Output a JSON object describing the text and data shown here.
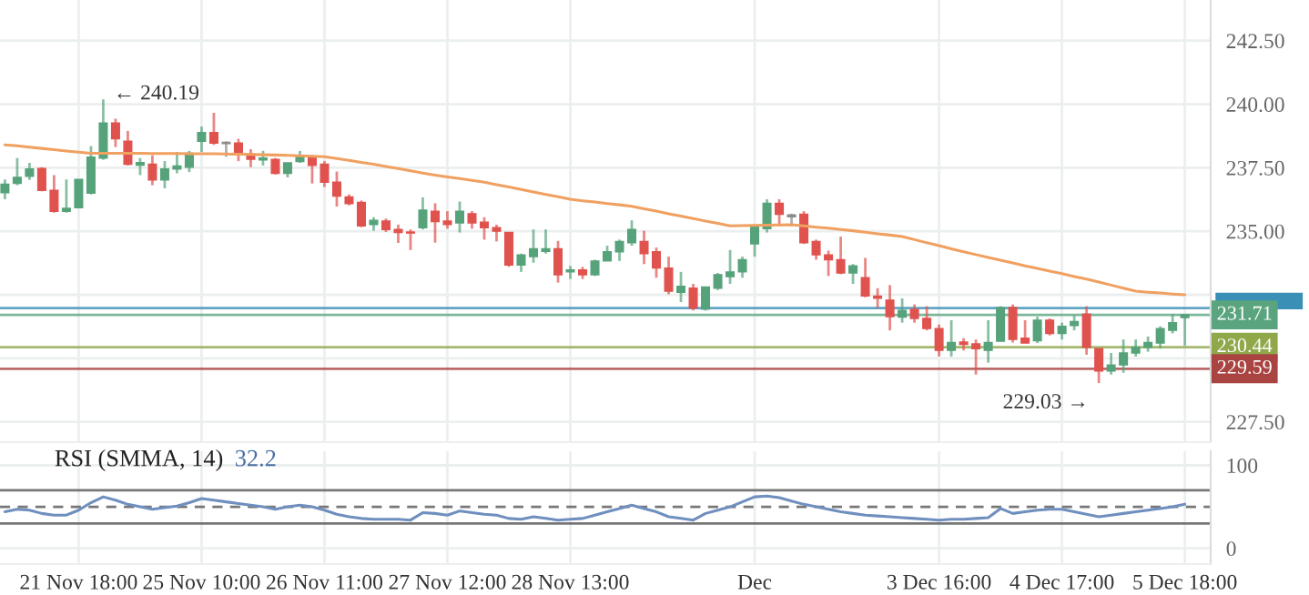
{
  "chart_data": [
    {
      "type": "candlestick",
      "tick_labels": "y",
      "grid": true,
      "ohlc": [
        [
          236.52,
          237.04,
          236.26,
          236.85
        ],
        [
          236.88,
          237.88,
          236.81,
          237.12
        ],
        [
          237.16,
          237.69,
          237.02,
          237.45
        ],
        [
          237.47,
          237.52,
          236.57,
          236.61
        ],
        [
          236.61,
          237.21,
          235.73,
          235.78
        ],
        [
          235.78,
          237.04,
          235.73,
          235.9
        ],
        [
          235.93,
          237.04,
          235.93,
          237.04
        ],
        [
          236.5,
          238.35,
          236.45,
          237.92
        ],
        [
          237.88,
          240.19,
          237.81,
          239.26
        ],
        [
          239.26,
          239.43,
          238.31,
          238.64
        ],
        [
          238.54,
          238.95,
          237.59,
          237.64
        ],
        [
          237.6,
          237.88,
          237.21,
          237.7
        ],
        [
          237.64,
          237.99,
          236.81,
          237.02
        ],
        [
          237.02,
          237.76,
          236.69,
          237.45
        ],
        [
          237.45,
          238.12,
          237.28,
          237.57
        ],
        [
          237.52,
          238.16,
          237.33,
          238.07
        ],
        [
          238.54,
          239.12,
          238.12,
          238.88
        ],
        [
          238.88,
          239.66,
          238.4,
          238.47
        ],
        [
          238.5,
          238.54,
          237.93,
          238.45
        ],
        [
          238.47,
          238.64,
          237.76,
          238.07
        ],
        [
          238.04,
          238.23,
          237.52,
          237.83
        ],
        [
          237.81,
          238.16,
          237.59,
          237.88
        ],
        [
          237.83,
          237.88,
          237.23,
          237.28
        ],
        [
          237.28,
          237.69,
          237.12,
          237.69
        ],
        [
          237.74,
          238.16,
          237.69,
          237.93
        ],
        [
          237.93,
          238.0,
          236.88,
          237.59
        ],
        [
          237.64,
          237.76,
          236.74,
          236.93
        ],
        [
          236.93,
          237.35,
          235.97,
          236.38
        ],
        [
          236.35,
          236.45,
          236.02,
          236.09
        ],
        [
          236.14,
          236.21,
          235.16,
          235.21
        ],
        [
          235.26,
          235.55,
          235.02,
          235.43
        ],
        [
          235.4,
          235.5,
          234.97,
          235.07
        ],
        [
          235.07,
          235.26,
          234.54,
          234.95
        ],
        [
          234.97,
          235.07,
          234.26,
          234.93
        ],
        [
          235.14,
          236.33,
          235.07,
          235.83
        ],
        [
          235.79,
          236.1,
          234.55,
          235.38
        ],
        [
          235.4,
          235.79,
          235.1,
          235.26
        ],
        [
          235.33,
          236.17,
          234.95,
          235.79
        ],
        [
          235.69,
          235.79,
          235.1,
          235.33
        ],
        [
          235.36,
          235.55,
          234.67,
          235.14
        ],
        [
          235.14,
          235.26,
          234.6,
          235.0
        ],
        [
          234.95,
          234.95,
          233.6,
          233.67
        ],
        [
          233.67,
          234.12,
          233.4,
          234.07
        ],
        [
          234.0,
          235.07,
          233.76,
          234.31
        ],
        [
          234.21,
          235.07,
          234.12,
          234.31
        ],
        [
          234.31,
          234.62,
          232.98,
          233.29
        ],
        [
          233.4,
          233.64,
          233.12,
          233.48
        ],
        [
          233.48,
          233.6,
          233.12,
          233.29
        ],
        [
          233.29,
          233.88,
          233.24,
          233.83
        ],
        [
          233.83,
          234.43,
          233.83,
          234.19
        ],
        [
          234.19,
          234.67,
          233.83,
          234.6
        ],
        [
          234.55,
          235.43,
          234.43,
          235.07
        ],
        [
          234.6,
          235.02,
          233.71,
          234.12
        ],
        [
          234.19,
          234.36,
          233.17,
          233.55
        ],
        [
          233.55,
          234.0,
          232.52,
          232.64
        ],
        [
          232.6,
          233.4,
          232.21,
          232.83
        ],
        [
          232.76,
          232.93,
          231.88,
          231.98
        ],
        [
          231.93,
          232.81,
          231.88,
          232.81
        ],
        [
          232.76,
          233.36,
          232.69,
          233.29
        ],
        [
          233.21,
          234.26,
          232.93,
          233.4
        ],
        [
          233.4,
          234.0,
          233.17,
          233.88
        ],
        [
          234.5,
          235.19,
          234.0,
          235.19
        ],
        [
          235.1,
          236.26,
          234.95,
          236.1
        ],
        [
          236.1,
          236.26,
          235.19,
          235.67
        ],
        [
          235.64,
          235.69,
          235.19,
          235.57
        ],
        [
          235.67,
          235.79,
          234.5,
          234.55
        ],
        [
          234.6,
          234.67,
          233.88,
          234.07
        ],
        [
          234.07,
          234.24,
          233.24,
          233.88
        ],
        [
          233.88,
          234.79,
          233.31,
          233.36
        ],
        [
          233.36,
          233.71,
          232.93,
          233.64
        ],
        [
          233.17,
          233.95,
          232.4,
          232.45
        ],
        [
          232.45,
          232.76,
          231.98,
          232.36
        ],
        [
          232.29,
          232.88,
          231.1,
          231.64
        ],
        [
          231.62,
          232.36,
          231.4,
          231.88
        ],
        [
          231.93,
          232.12,
          231.4,
          231.57
        ],
        [
          231.57,
          232.05,
          231.1,
          231.17
        ],
        [
          231.17,
          231.33,
          230.07,
          230.31
        ],
        [
          230.31,
          231.5,
          230.07,
          230.62
        ],
        [
          230.64,
          230.79,
          230.31,
          230.55
        ],
        [
          230.57,
          230.74,
          229.36,
          230.38
        ],
        [
          230.31,
          231.5,
          229.83,
          230.62
        ],
        [
          230.67,
          232.05,
          230.67,
          232.0
        ],
        [
          232.0,
          232.12,
          230.62,
          230.74
        ],
        [
          230.79,
          231.5,
          230.6,
          230.6
        ],
        [
          230.69,
          231.64,
          230.6,
          231.5
        ],
        [
          231.5,
          231.57,
          230.9,
          230.98
        ],
        [
          230.98,
          231.4,
          230.74,
          231.26
        ],
        [
          231.29,
          231.69,
          231.1,
          231.45
        ],
        [
          231.74,
          232.05,
          230.14,
          230.43
        ],
        [
          230.38,
          230.38,
          229.03,
          229.5
        ],
        [
          229.5,
          230.21,
          229.36,
          229.74
        ],
        [
          229.74,
          230.74,
          229.43,
          230.21
        ],
        [
          230.21,
          230.74,
          230.07,
          230.43
        ],
        [
          230.43,
          230.86,
          230.26,
          230.62
        ],
        [
          230.6,
          231.26,
          230.38,
          231.17
        ],
        [
          231.1,
          231.74,
          230.98,
          231.4
        ],
        [
          231.6,
          231.71,
          230.5,
          231.71
        ]
      ],
      "colors": [
        "#56a27a",
        "#56a27a",
        "#56a27a",
        "#e0524e",
        "#e0524e",
        "#56a27a",
        "#56a27a",
        "#56a27a",
        "#56a27a",
        "#e0524e",
        "#e0524e",
        "#56a27a",
        "#e0524e",
        "#56a27a",
        "#56a27a",
        "#56a27a",
        "#56a27a",
        "#e0524e",
        "#8c8c8c",
        "#e0524e",
        "#e0524e",
        "#56a27a",
        "#e0524e",
        "#56a27a",
        "#56a27a",
        "#e0524e",
        "#e0524e",
        "#e0524e",
        "#e0524e",
        "#e0524e",
        "#56a27a",
        "#e0524e",
        "#e0524e",
        "#e0524e",
        "#56a27a",
        "#e0524e",
        "#e0524e",
        "#56a27a",
        "#e0524e",
        "#e0524e",
        "#e0524e",
        "#e0524e",
        "#56a27a",
        "#56a27a",
        "#56a27a",
        "#e0524e",
        "#56a27a",
        "#e0524e",
        "#56a27a",
        "#56a27a",
        "#56a27a",
        "#56a27a",
        "#e0524e",
        "#e0524e",
        "#e0524e",
        "#56a27a",
        "#e0524e",
        "#56a27a",
        "#56a27a",
        "#56a27a",
        "#56a27a",
        "#56a27a",
        "#56a27a",
        "#e0524e",
        "#8c8c8c",
        "#e0524e",
        "#e0524e",
        "#e0524e",
        "#e0524e",
        "#56a27a",
        "#e0524e",
        "#e0524e",
        "#e0524e",
        "#56a27a",
        "#e0524e",
        "#e0524e",
        "#e0524e",
        "#56a27a",
        "#e0524e",
        "#e0524e",
        "#56a27a",
        "#56a27a",
        "#e0524e",
        "#e0524e",
        "#56a27a",
        "#e0524e",
        "#56a27a",
        "#56a27a",
        "#e0524e",
        "#e0524e",
        "#56a27a",
        "#56a27a",
        "#56a27a",
        "#56a27a",
        "#56a27a",
        "#56a27a",
        "#56a27a"
      ],
      "series": [
        {
          "type": "line",
          "color": "#f0a060",
          "values": [
            238.4,
            238.36,
            238.31,
            238.26,
            238.21,
            238.16,
            238.11,
            238.07,
            238.07,
            238.07,
            238.07,
            238.07,
            238.06,
            238.06,
            238.06,
            238.05,
            238.05,
            238.05,
            238.04,
            238.03,
            238.02,
            238.01,
            238.0,
            237.99,
            237.97,
            237.95,
            237.93,
            237.86,
            237.79,
            237.71,
            237.64,
            237.55,
            237.47,
            237.38,
            237.29,
            237.21,
            237.14,
            237.07,
            237.0,
            236.93,
            236.83,
            236.74,
            236.64,
            236.55,
            236.45,
            236.36,
            236.26,
            236.2,
            236.15,
            236.09,
            236.04,
            235.98,
            235.88,
            235.79,
            235.69,
            235.6,
            235.5,
            235.4,
            235.31,
            235.21,
            235.22,
            235.23,
            235.24,
            235.25,
            235.26,
            235.21,
            235.16,
            235.12,
            235.07,
            235.02,
            234.96,
            234.9,
            234.85,
            234.79,
            234.67,
            234.55,
            234.43,
            234.31,
            234.19,
            234.08,
            233.97,
            233.86,
            233.75,
            233.64,
            233.54,
            233.43,
            233.33,
            233.22,
            233.12,
            233.0,
            232.88,
            232.76,
            232.64,
            232.6,
            232.57,
            232.53,
            232.5
          ]
        }
      ],
      "ylim": [
        226.7,
        244.1
      ],
      "yticks": [
        {
          "value": 227.5,
          "label": "227.50"
        },
        {
          "value": 230,
          "label": null
        },
        {
          "value": 232.5,
          "label": null
        },
        {
          "value": 235,
          "label": "235.00"
        },
        {
          "value": 237.5,
          "label": "237.50"
        },
        {
          "value": 240,
          "label": "240.00"
        },
        {
          "value": 242.5,
          "label": "242.50"
        }
      ],
      "ref_lines": [
        {
          "axis": "y",
          "value": 231.98,
          "label": null,
          "color": "#3a8fb7",
          "line_style": "solid"
        },
        {
          "axis": "y",
          "value": 231.71,
          "label": "231.71",
          "color": "#5aa57f",
          "line_style": "solid"
        },
        {
          "axis": "y",
          "value": 230.44,
          "label": "230.44",
          "color": "#8fa84a",
          "line_style": "solid"
        },
        {
          "axis": "y",
          "value": 229.59,
          "label": "229.59",
          "color": "#a94442",
          "line_style": "solid"
        }
      ],
      "annotations": [
        "← 240.19",
        "229.03 →"
      ]
    },
    {
      "type": "line",
      "title": "RSI (SMMA, 14)",
      "annotations": [
        "32.2"
      ],
      "grid": true,
      "series": [
        {
          "color": "#6f8fbf",
          "values": [
            44,
            47,
            46,
            42,
            40,
            40,
            46,
            55,
            62,
            58,
            53,
            50,
            47,
            49,
            51,
            55,
            60,
            58,
            56,
            54,
            52,
            50,
            47,
            50,
            52,
            50,
            46,
            41,
            38,
            36,
            35,
            35,
            35,
            34,
            43,
            42,
            40,
            45,
            43,
            41,
            40,
            36,
            35,
            38,
            36,
            34,
            35,
            36,
            40,
            44,
            48,
            52,
            48,
            44,
            38,
            36,
            34,
            42,
            46,
            50,
            56,
            62,
            63,
            61,
            57,
            53,
            50,
            47,
            44,
            42,
            40,
            39,
            38,
            37,
            36,
            35,
            34,
            35,
            35,
            36,
            37,
            48,
            42,
            44,
            46,
            47,
            47,
            44,
            41,
            38,
            40,
            42,
            44,
            46,
            48,
            50,
            53
          ]
        }
      ],
      "categories": [
        null,
        null,
        null,
        null,
        null,
        null,
        "21 Nov 18:00",
        null,
        null,
        null,
        null,
        null,
        null,
        null,
        null,
        null,
        "25 Nov 10:00",
        null,
        null,
        null,
        null,
        null,
        null,
        null,
        null,
        null,
        "26 Nov 11:00",
        null,
        null,
        null,
        null,
        null,
        null,
        null,
        null,
        null,
        "27 Nov 12:00",
        null,
        null,
        null,
        null,
        null,
        null,
        null,
        null,
        null,
        "28 Nov 13:00",
        null,
        null,
        null,
        null,
        null,
        null,
        null,
        null,
        null,
        null,
        null,
        null,
        null,
        null,
        "Dec",
        null,
        null,
        null,
        null,
        null,
        null,
        null,
        null,
        null,
        null,
        null,
        null,
        null,
        null,
        "3 Dec 16:00",
        null,
        null,
        null,
        null,
        null,
        null,
        null,
        null,
        null,
        "4 Dec 17:00",
        null,
        null,
        null,
        null,
        null,
        null,
        null,
        null,
        null,
        "5 Dec 18:00"
      ],
      "ylim": [
        -19,
        117
      ],
      "yticks": [
        0,
        100
      ],
      "ref_lines": [
        {
          "axis": "y",
          "value": 70,
          "label": null,
          "color": "#555555",
          "line_style": "solid"
        },
        {
          "axis": "y",
          "value": 50,
          "label": null,
          "color": "#555555",
          "line_style": "dashed"
        },
        {
          "axis": "y",
          "value": 30,
          "label": null,
          "color": "#555555",
          "line_style": "solid"
        }
      ]
    }
  ]
}
